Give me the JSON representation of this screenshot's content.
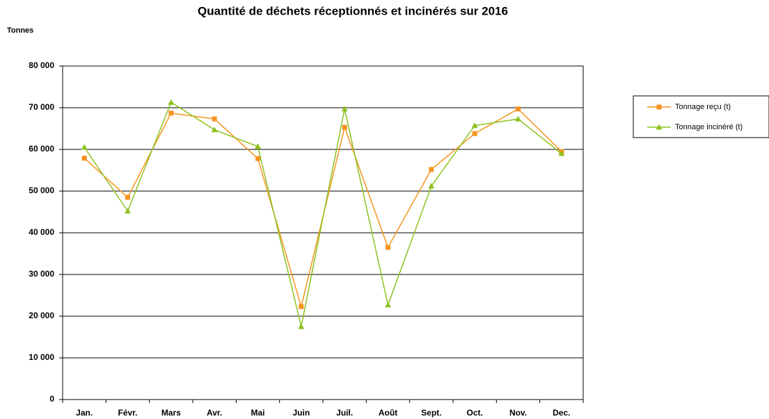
{
  "chart_data": {
    "type": "line",
    "title": "Quantité de déchets réceptionnés et incinérés sur 2016",
    "y_label": "Tonnes",
    "categories": [
      "Jan.",
      "Févr.",
      "Mars",
      "Avr.",
      "Mai",
      "Juin",
      "Juil.",
      "Août",
      "Sept.",
      "Oct.",
      "Nov.",
      "Dec."
    ],
    "series": [
      {
        "name": "Tonnage reçu (t)",
        "color": "#f7931e",
        "marker": "square",
        "values": [
          57900,
          48500,
          68700,
          67300,
          57800,
          22300,
          65300,
          36500,
          55200,
          63800,
          69700,
          59500
        ]
      },
      {
        "name": "Tonnage incinéré (t)",
        "color": "#8dc21f",
        "marker": "triangle",
        "values": [
          60500,
          45200,
          71300,
          64700,
          60700,
          17500,
          69700,
          22700,
          51200,
          65700,
          67300,
          59000
        ]
      }
    ],
    "ylim": [
      0,
      80000
    ],
    "yticks": [
      0,
      {
        "value": 10000,
        "label": "10 000"
      },
      {
        "value": 20000,
        "label": "20 000"
      },
      {
        "value": 30000,
        "label": "30 000"
      },
      {
        "value": 40000,
        "label": "40 000"
      },
      {
        "value": 50000,
        "label": "50 000"
      },
      {
        "value": 60000,
        "label": "60 000"
      },
      {
        "value": 70000,
        "label": "70 000"
      },
      {
        "value": 80000,
        "label": "80 000"
      }
    ],
    "grid": true,
    "legend": "right"
  }
}
